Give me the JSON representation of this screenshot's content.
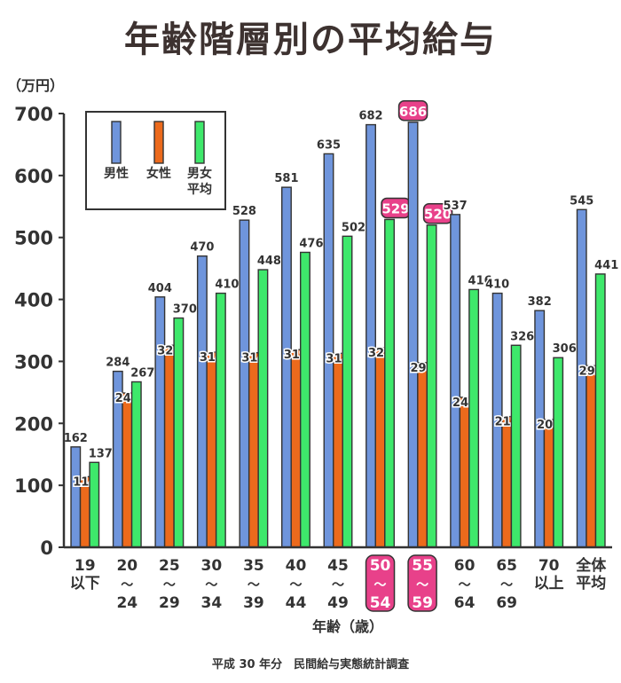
{
  "chart_data": {
    "type": "bar",
    "title": "年齢階層別の平均給与",
    "unit_label": "（万円）",
    "xlabel": "年齢（歳）",
    "ylim": [
      0,
      700
    ],
    "yticks": [
      0,
      100,
      200,
      300,
      400,
      500,
      600,
      700
    ],
    "grid": false,
    "legend_position": "top-left",
    "categories": [
      [
        "19",
        "以下"
      ],
      [
        "20",
        "～",
        "24"
      ],
      [
        "25",
        "～",
        "29"
      ],
      [
        "30",
        "～",
        "34"
      ],
      [
        "35",
        "～",
        "39"
      ],
      [
        "40",
        "～",
        "44"
      ],
      [
        "45",
        "～",
        "49"
      ],
      [
        "50",
        "～",
        "54"
      ],
      [
        "55",
        "～",
        "59"
      ],
      [
        "60",
        "～",
        "64"
      ],
      [
        "65",
        "～",
        "69"
      ],
      [
        "70",
        "以上"
      ],
      [
        "全体",
        "平均"
      ]
    ],
    "highlighted_categories": [
      7,
      8
    ],
    "series": [
      {
        "name": "男性",
        "color": "#6f95dc",
        "values": [
          162,
          284,
          404,
          470,
          528,
          581,
          635,
          682,
          686,
          537,
          410,
          382,
          545
        ],
        "highlight": [
          8
        ]
      },
      {
        "name": "女性",
        "color": "#ec6a1c",
        "values": [
          114,
          249,
          326,
          315,
          314,
          319,
          313,
          322,
          298,
          242,
          211,
          206,
          293
        ],
        "highlight": []
      },
      {
        "name": "男女\n平均",
        "color": "#3ee86b",
        "values": [
          137,
          267,
          370,
          410,
          448,
          476,
          502,
          529,
          520,
          416,
          326,
          306,
          441
        ],
        "highlight": [
          7,
          8
        ]
      }
    ],
    "highlight_color": "#e8418a"
  },
  "source": "平成 30 年分　民間給与実態統計調査"
}
